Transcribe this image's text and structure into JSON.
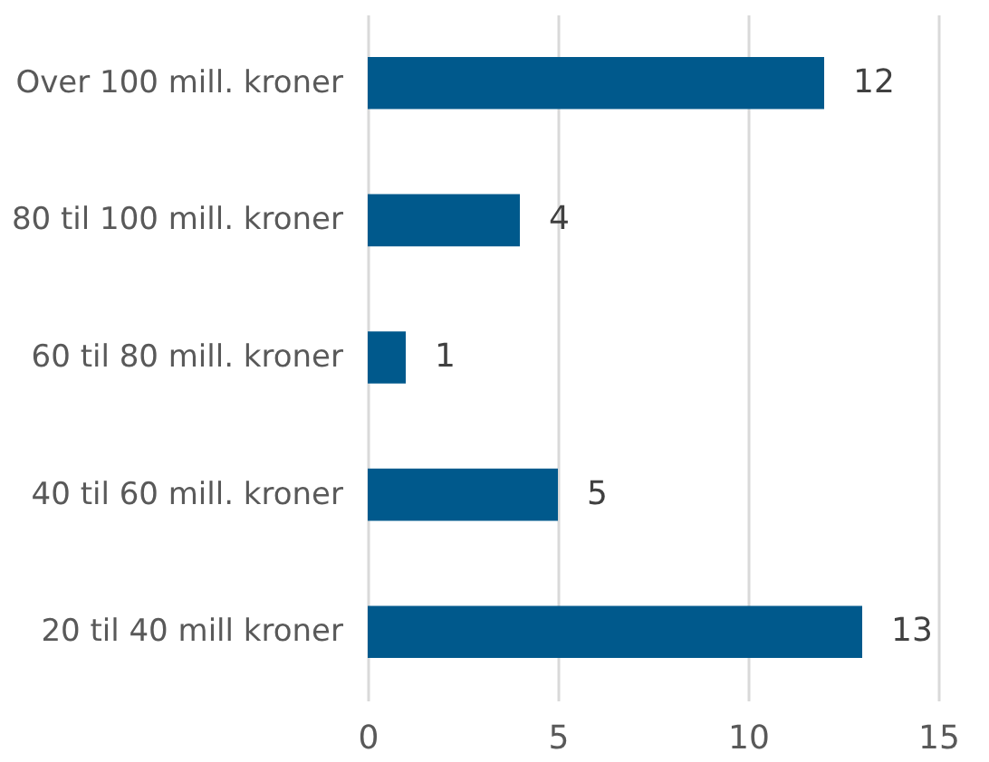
{
  "chart_data": {
    "type": "bar",
    "orientation": "horizontal",
    "categories": [
      "Over 100 mill. kroner",
      "80 til 100 mill. kroner",
      "60 til 80 mill. kroner",
      "40 til 60 mill. kroner",
      "20 til 40 mill kroner"
    ],
    "values": [
      12,
      4,
      1,
      5,
      13
    ],
    "color": "#00598c",
    "xlim": [
      0,
      15
    ],
    "xticks": [
      0,
      5,
      10,
      15
    ],
    "grid": "x",
    "data_labels": true
  }
}
